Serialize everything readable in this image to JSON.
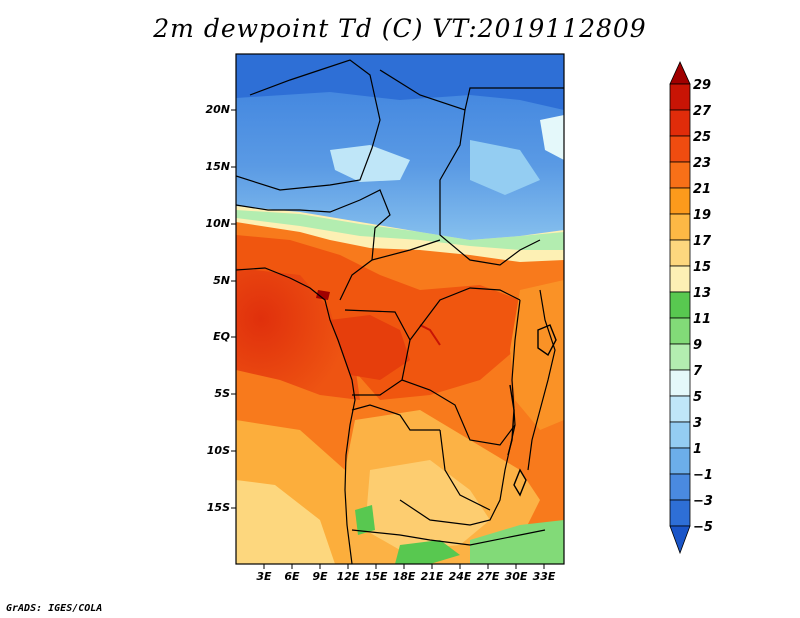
{
  "title": "2m dewpoint Td (C) VT:2019112809",
  "credit": "GrADS: IGES/COLA",
  "map": {
    "type": "filled-contour map",
    "variable": "2m dewpoint temperature",
    "units": "C",
    "valid_time": "2019112809",
    "region": "Central Africa",
    "lon_range": [
      0,
      35
    ],
    "lat_range": [
      -20,
      25
    ],
    "lat_tick_labels": [
      "20N",
      "15N",
      "10N",
      "5N",
      "EQ",
      "5S",
      "10S",
      "15S"
    ],
    "lon_tick_labels": [
      "3E",
      "6E",
      "9E",
      "12E",
      "15E",
      "18E",
      "21E",
      "24E",
      "27E",
      "30E",
      "33E"
    ]
  },
  "colorbar": {
    "labels": [
      "29",
      "27",
      "25",
      "23",
      "21",
      "19",
      "17",
      "15",
      "13",
      "11",
      "9",
      "7",
      "5",
      "3",
      "1",
      "−1",
      "−3",
      "−5"
    ],
    "colors": [
      "#a00000",
      "#c81405",
      "#e02c0a",
      "#f04c10",
      "#f87018",
      "#fc9a1c",
      "#fdb845",
      "#fdd77e",
      "#fdf0b4",
      "#58c850",
      "#82da78",
      "#b3edb0",
      "#e4f8fa",
      "#bfe6f8",
      "#94cdf2",
      "#6caeea",
      "#4a8ae0",
      "#2e6fd6",
      "#1a55c8"
    ]
  }
}
